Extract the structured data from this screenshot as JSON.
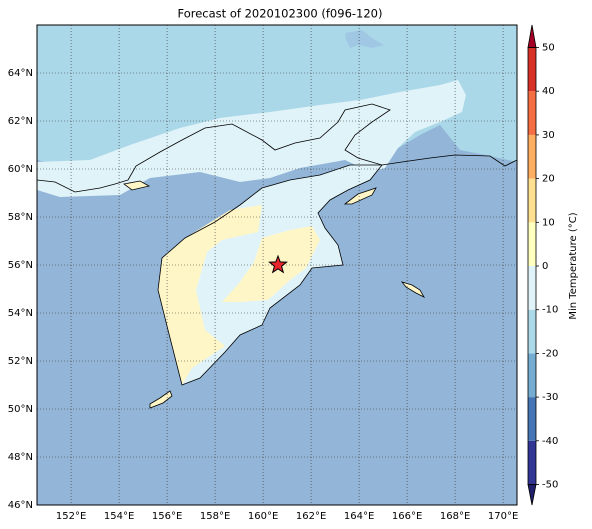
{
  "map": {
    "title": "Forecast of 2020102300 (f096-120)",
    "lonlim": [
      150.58,
      170.58
    ],
    "latlim": [
      46,
      66
    ],
    "lon_ticks": [
      {
        "value": 152,
        "label": "152°E"
      },
      {
        "value": 154,
        "label": "154°E"
      },
      {
        "value": 156,
        "label": "156°E"
      },
      {
        "value": 158,
        "label": "158°E"
      },
      {
        "value": 160,
        "label": "160°E"
      },
      {
        "value": 162,
        "label": "162°E"
      },
      {
        "value": 164,
        "label": "164°E"
      },
      {
        "value": 166,
        "label": "166°E"
      },
      {
        "value": 168,
        "label": "168°E"
      },
      {
        "value": 170,
        "label": "170°E"
      }
    ],
    "lat_ticks": [
      {
        "value": 46,
        "label": "46°N"
      },
      {
        "value": 48,
        "label": "48°N"
      },
      {
        "value": 50,
        "label": "50°N"
      },
      {
        "value": 52,
        "label": "52°N"
      },
      {
        "value": 54,
        "label": "54°N"
      },
      {
        "value": 56,
        "label": "56°N"
      },
      {
        "value": 58,
        "label": "58°N"
      },
      {
        "value": 60,
        "label": "60°N"
      },
      {
        "value": 62,
        "label": "62°N"
      },
      {
        "value": 64,
        "label": "64°N"
      }
    ],
    "grid": true,
    "colorbar": {
      "label": "Min Temperature (°C)",
      "lim": [
        -50,
        50
      ],
      "ticks": [
        -50,
        -40,
        -30,
        -20,
        -10,
        0,
        10,
        20,
        30,
        40,
        50
      ],
      "colors": [
        "#313695",
        "#4575b4",
        "#74add1",
        "#abd9e9",
        "#e0f3f8",
        "#ffffbf",
        "#fee090",
        "#fdae61",
        "#f46d43",
        "#d73027"
      ],
      "under_color": "#1f1f6b",
      "over_color": "#a50026"
    }
  }
}
